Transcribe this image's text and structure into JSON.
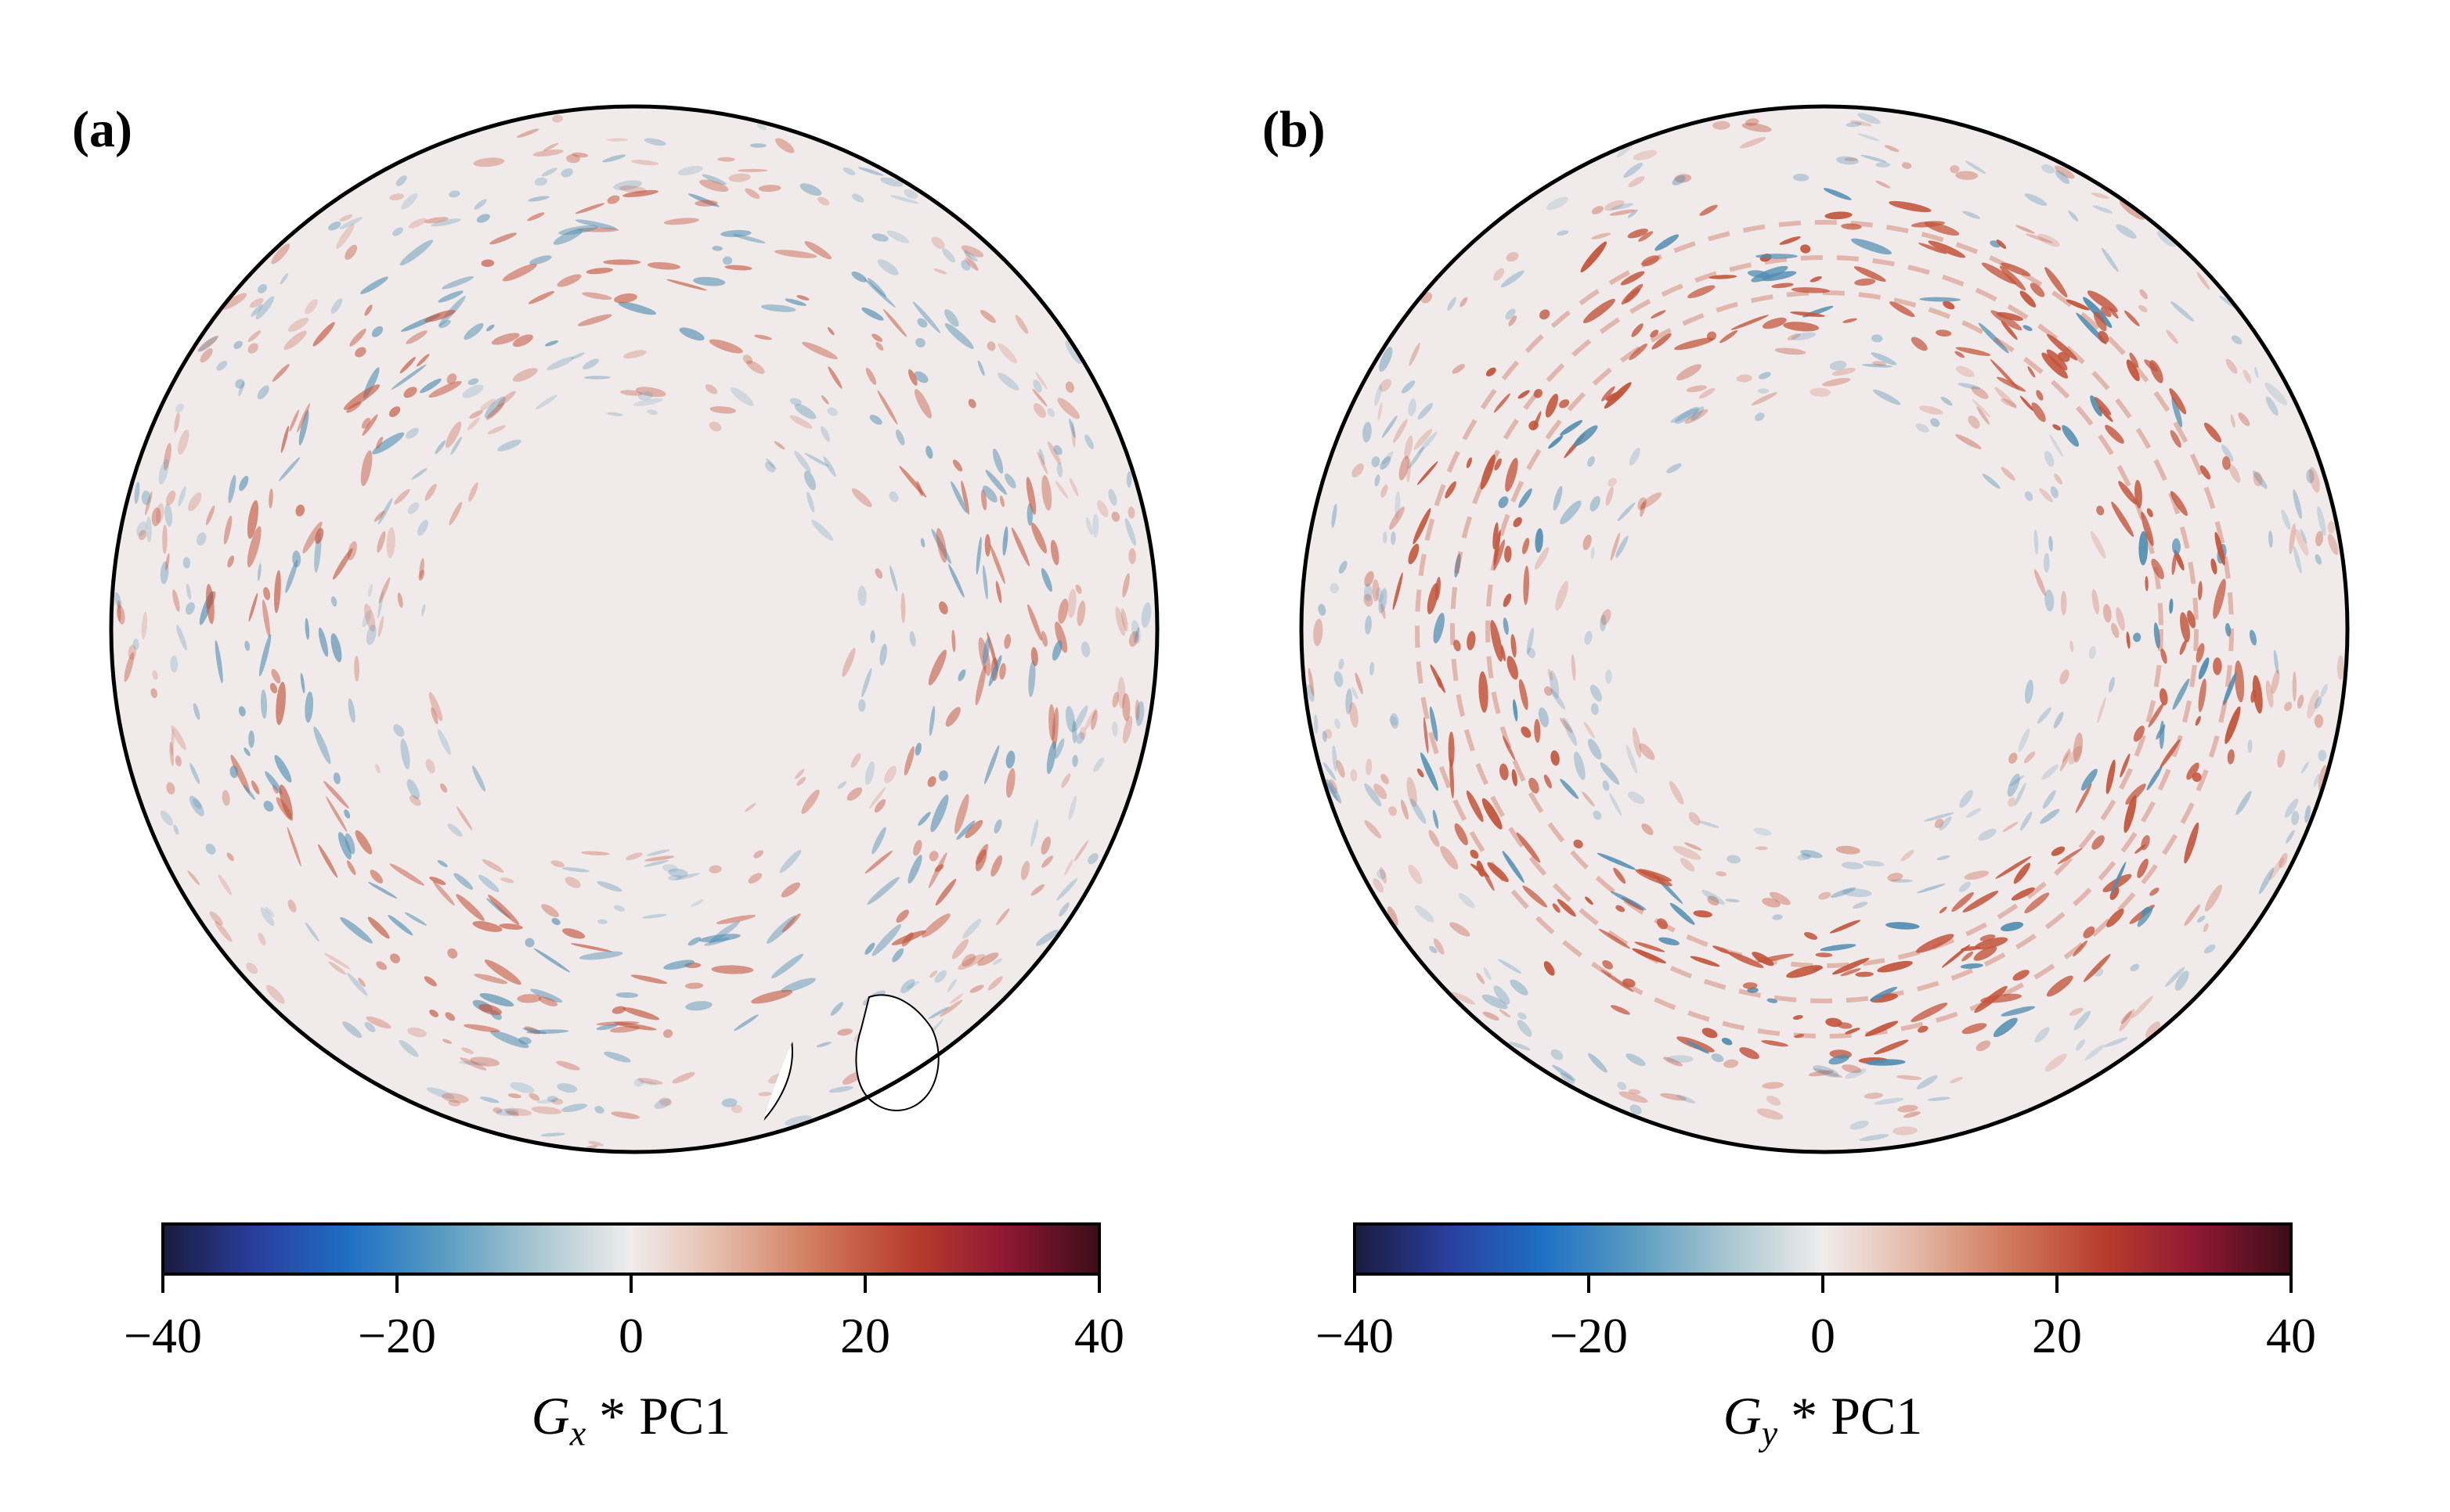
{
  "panels": [
    {
      "id": "a",
      "label": "(a)",
      "colorbar": {
        "ticks": [
          "−40",
          "−20",
          "0",
          "20",
          "40"
        ],
        "tick_values": [
          -40,
          -20,
          0,
          20,
          40
        ],
        "label_symbol": "G",
        "label_sub": "x",
        "label_rest": " * PC1"
      }
    },
    {
      "id": "b",
      "label": "(b)",
      "colorbar": {
        "ticks": [
          "−40",
          "−20",
          "0",
          "20",
          "40"
        ],
        "tick_values": [
          -40,
          -20,
          0,
          20,
          40
        ],
        "label_symbol": "G",
        "label_sub": "y",
        "label_rest": " * PC1"
      }
    }
  ],
  "colormap": {
    "name": "balance",
    "range": [
      -40,
      40
    ],
    "stops": [
      "#1a1b3d",
      "#2a3f9e",
      "#1f6fc4",
      "#5a9cc1",
      "#a9c7d0",
      "#f0ecec",
      "#e3b8a6",
      "#d0785a",
      "#b83d2e",
      "#8e1833",
      "#3c0d18"
    ]
  },
  "map": {
    "projection": "south-polar-stereographic",
    "land_color": "#ffffff",
    "ocean_background": "#f1eaea",
    "positive_color": "#c2553c",
    "negative_color": "#4f8db0"
  }
}
